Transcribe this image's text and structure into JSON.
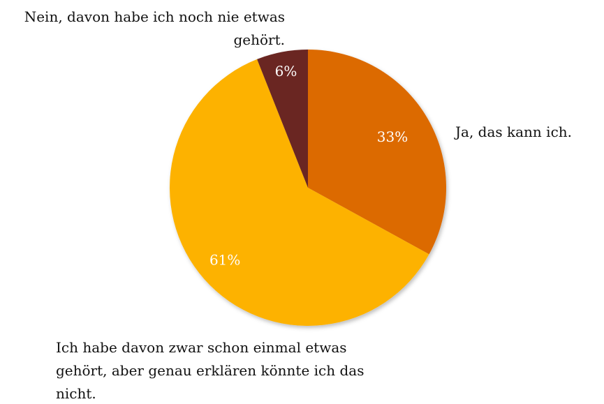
{
  "chart_data": {
    "type": "pie",
    "categories": [
      "Ja, das kann ich.",
      "Ich habe davon zwar schon einmal etwas gehört, aber genau erklären könnte ich das nicht.",
      "Nein, davon habe ich noch nie etwas gehört."
    ],
    "values": [
      33,
      61,
      6
    ],
    "value_labels": [
      "33%",
      "61%",
      "6%"
    ],
    "colors": [
      "#dc6b00",
      "#fdb200",
      "#6b2621"
    ]
  }
}
